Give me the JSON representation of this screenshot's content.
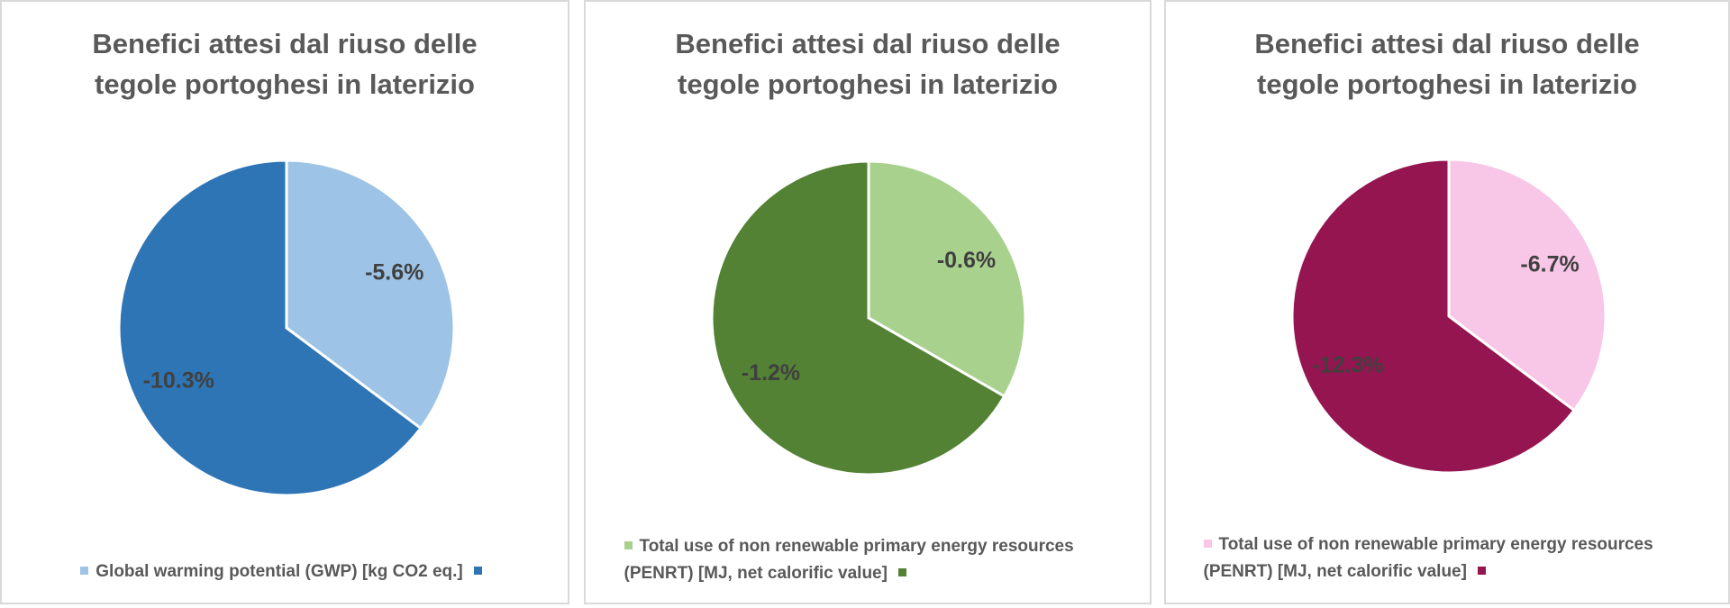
{
  "chart_data": [
    {
      "type": "pie",
      "title": "Benefici attesi dal riuso delle tegole portoghesi in laterizio",
      "categories": [
        "Global warming potential (GWP) [kg CO2 eq.]",
        null
      ],
      "values": [
        -5.6,
        -10.3
      ],
      "value_labels": [
        "-5.6%",
        "-10.3%"
      ],
      "colors": [
        "#9dc3e6",
        "#2e75b6"
      ]
    },
    {
      "type": "pie",
      "title": "Benefici attesi dal riuso delle tegole portoghesi in laterizio",
      "categories": [
        "Total use of non renewable primary energy resources (PENRT) [MJ, net calorific value]",
        null
      ],
      "values": [
        -0.6,
        -1.2
      ],
      "value_labels": [
        "-0.6%",
        "-1.2%"
      ],
      "colors": [
        "#a9d18e",
        "#548235"
      ]
    },
    {
      "type": "pie",
      "title": "Benefici attesi dal riuso delle tegole portoghesi in laterizio",
      "categories": [
        "Total use of non renewable primary energy resources (PENRT) [MJ, net calorific value]",
        null
      ],
      "values": [
        -6.7,
        -12.3
      ],
      "value_labels": [
        "-6.7%",
        "-12.3%"
      ],
      "colors": [
        "#f8c6e6",
        "#951550"
      ]
    }
  ]
}
